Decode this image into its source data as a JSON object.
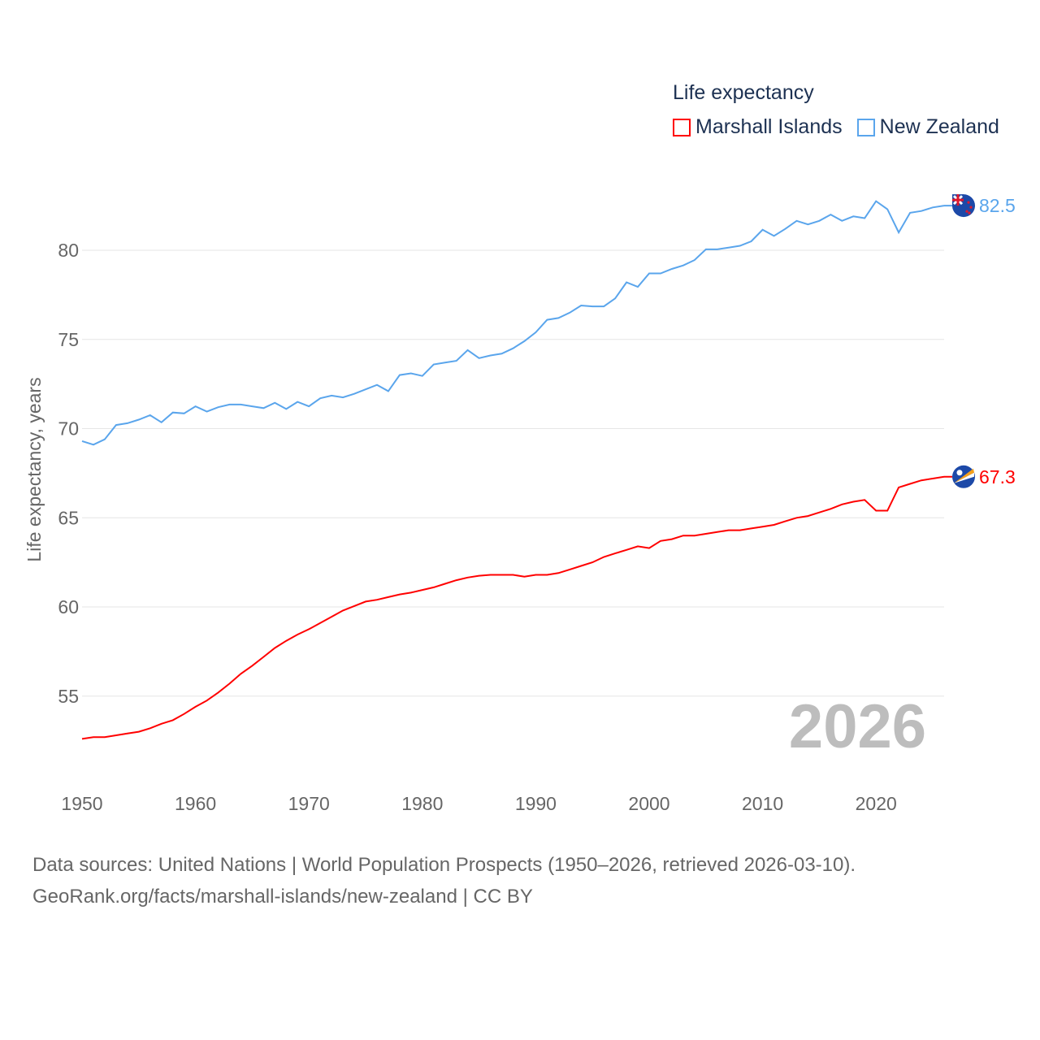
{
  "legend": {
    "title": "Life expectancy"
  },
  "sources": {
    "line1": "Data sources: United Nations | World Population Prospects (1950–2026, retrieved 2026-03-10).",
    "line2": "GeoRank.org/facts/marshall-islands/new-zealand | CC BY"
  },
  "chart_data": {
    "type": "line",
    "title": "Life expectancy",
    "xlabel": "",
    "ylabel": "Life expectancy, years",
    "xlim": [
      1950,
      2026
    ],
    "ylim": [
      51,
      84
    ],
    "yticks": [
      55,
      60,
      65,
      70,
      75,
      80
    ],
    "xticks": [
      1950,
      1960,
      1970,
      1980,
      1990,
      2000,
      2010,
      2020
    ],
    "grid": true,
    "legend_position": "top-right",
    "watermark_year": "2026",
    "x": [
      1950,
      1951,
      1952,
      1953,
      1954,
      1955,
      1956,
      1957,
      1958,
      1959,
      1960,
      1961,
      1962,
      1963,
      1964,
      1965,
      1966,
      1967,
      1968,
      1969,
      1970,
      1971,
      1972,
      1973,
      1974,
      1975,
      1976,
      1977,
      1978,
      1979,
      1980,
      1981,
      1982,
      1983,
      1984,
      1985,
      1986,
      1987,
      1988,
      1989,
      1990,
      1991,
      1992,
      1993,
      1994,
      1995,
      1996,
      1997,
      1998,
      1999,
      2000,
      2001,
      2002,
      2003,
      2004,
      2005,
      2006,
      2007,
      2008,
      2009,
      2010,
      2011,
      2012,
      2013,
      2014,
      2015,
      2016,
      2017,
      2018,
      2019,
      2020,
      2021,
      2022,
      2023,
      2024,
      2025,
      2026
    ],
    "series": [
      {
        "name": "Marshall Islands",
        "color": "#ff0000",
        "end_label": "67.3",
        "values": [
          52.6,
          52.7,
          52.7,
          52.8,
          52.9,
          53.0,
          53.2,
          53.45,
          53.65,
          54.0,
          54.4,
          54.75,
          55.2,
          55.7,
          56.25,
          56.7,
          57.2,
          57.7,
          58.1,
          58.45,
          58.75,
          59.1,
          59.45,
          59.8,
          60.05,
          60.3,
          60.4,
          60.55,
          60.7,
          60.8,
          60.95,
          61.1,
          61.3,
          61.5,
          61.65,
          61.75,
          61.8,
          61.8,
          61.8,
          61.7,
          61.8,
          61.8,
          61.9,
          62.1,
          62.3,
          62.5,
          62.8,
          63.0,
          63.2,
          63.4,
          63.3,
          63.7,
          63.8,
          64.0,
          64.0,
          64.1,
          64.2,
          64.3,
          64.3,
          64.4,
          64.5,
          64.6,
          64.8,
          65.0,
          65.1,
          65.3,
          65.5,
          65.75,
          65.9,
          66.0,
          65.4,
          65.4,
          66.7,
          66.9,
          67.1,
          67.2,
          67.3
        ]
      },
      {
        "name": "New Zealand",
        "color": "#5aa5ec",
        "end_label": "82.5",
        "values": [
          69.3,
          69.1,
          69.4,
          70.2,
          70.3,
          70.5,
          70.75,
          70.35,
          70.9,
          70.85,
          71.25,
          70.95,
          71.2,
          71.35,
          71.35,
          71.25,
          71.15,
          71.45,
          71.1,
          71.5,
          71.25,
          71.7,
          71.85,
          71.75,
          71.95,
          72.2,
          72.45,
          72.1,
          73.0,
          73.1,
          72.95,
          73.6,
          73.7,
          73.8,
          74.4,
          73.95,
          74.1,
          74.2,
          74.5,
          74.9,
          75.4,
          76.1,
          76.2,
          76.5,
          76.9,
          76.85,
          76.85,
          77.3,
          78.2,
          77.95,
          78.7,
          78.7,
          78.95,
          79.15,
          79.45,
          80.05,
          80.05,
          80.15,
          80.25,
          80.5,
          81.15,
          80.8,
          81.2,
          81.65,
          81.45,
          81.65,
          82.0,
          81.65,
          81.9,
          81.8,
          82.75,
          82.3,
          81.0,
          82.1,
          82.2,
          82.4,
          82.5
        ]
      }
    ]
  }
}
